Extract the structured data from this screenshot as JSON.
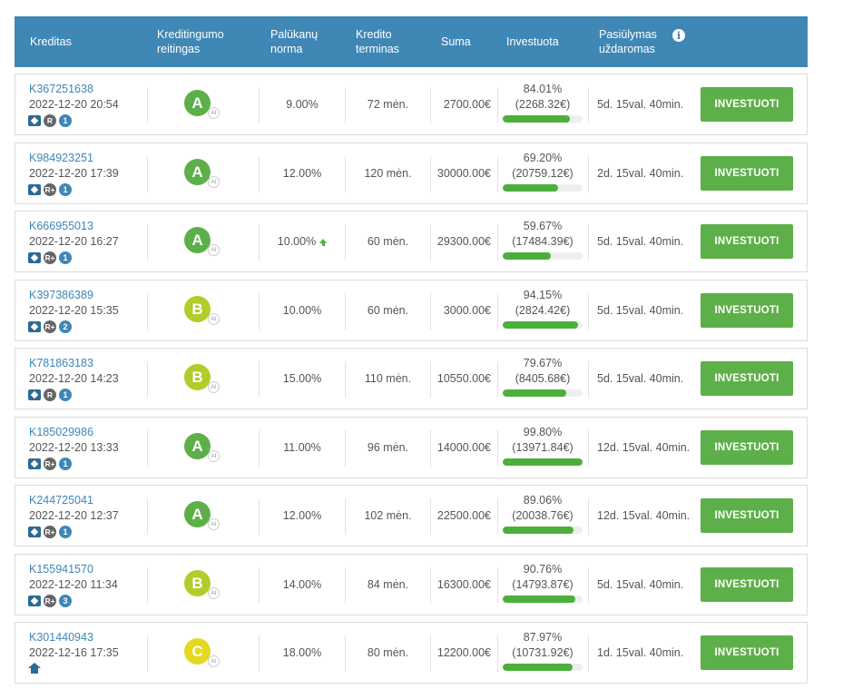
{
  "colors": {
    "header_bg": "#3f87b5",
    "grade_A": "#5db049",
    "grade_B": "#b3cc2a",
    "grade_C": "#e5d820",
    "button": "#5db049",
    "link": "#3d86b8"
  },
  "header": {
    "loan": "Kreditas",
    "rating_line1": "Kreditingumo",
    "rating_line2": "reitingas",
    "rate_line1": "Palūkanų",
    "rate_line2": "norma",
    "term_line1": "Kredito",
    "term_line2": "terminas",
    "amount": "Suma",
    "invested": "Investuota",
    "offer_line1": "Pasiūlymas",
    "offer_line2": "uždaromas",
    "info_icon": "info-icon"
  },
  "rows": [
    {
      "id": "K367251638",
      "date": "2022-12-20 20:54",
      "badge_type": "case",
      "risk": "R",
      "count": "1",
      "grade": "A",
      "ai": "AI",
      "rate": "9.00%",
      "rate_up": false,
      "term": "72 mėn.",
      "amount": "2700.00€",
      "pct": "84.01%",
      "invested": "(2268.32€)",
      "progress": 84.01,
      "closes": "5d. 15val. 40min.",
      "button": "INVESTUOTI"
    },
    {
      "id": "K984923251",
      "date": "2022-12-20 17:39",
      "badge_type": "case",
      "risk": "R+",
      "count": "1",
      "grade": "A",
      "ai": "AI",
      "rate": "12.00%",
      "rate_up": false,
      "term": "120 mėn.",
      "amount": "30000.00€",
      "pct": "69.20%",
      "invested": "(20759.12€)",
      "progress": 69.2,
      "closes": "2d. 15val. 40min.",
      "button": "INVESTUOTI"
    },
    {
      "id": "K666955013",
      "date": "2022-12-20 16:27",
      "badge_type": "case",
      "risk": "R+",
      "count": "1",
      "grade": "A",
      "ai": "AI",
      "rate": "10.00%",
      "rate_up": true,
      "term": "60 mėn.",
      "amount": "29300.00€",
      "pct": "59.67%",
      "invested": "(17484.39€)",
      "progress": 59.67,
      "closes": "5d. 15val. 40min.",
      "button": "INVESTUOTI"
    },
    {
      "id": "K397386389",
      "date": "2022-12-20 15:35",
      "badge_type": "case",
      "risk": "R+",
      "count": "2",
      "grade": "B",
      "ai": "AI",
      "rate": "10.00%",
      "rate_up": false,
      "term": "60 mėn.",
      "amount": "3000.00€",
      "pct": "94.15%",
      "invested": "(2824.42€)",
      "progress": 94.15,
      "closes": "5d. 15val. 40min.",
      "button": "INVESTUOTI"
    },
    {
      "id": "K781863183",
      "date": "2022-12-20 14:23",
      "badge_type": "case",
      "risk": "R",
      "count": "1",
      "grade": "B",
      "ai": "AI",
      "rate": "15.00%",
      "rate_up": false,
      "term": "110 mėn.",
      "amount": "10550.00€",
      "pct": "79.67%",
      "invested": "(8405.68€)",
      "progress": 79.67,
      "closes": "5d. 15val. 40min.",
      "button": "INVESTUOTI"
    },
    {
      "id": "K185029986",
      "date": "2022-12-20 13:33",
      "badge_type": "case",
      "risk": "R+",
      "count": "1",
      "grade": "A",
      "ai": "AI",
      "rate": "11.00%",
      "rate_up": false,
      "term": "96 mėn.",
      "amount": "14000.00€",
      "pct": "99.80%",
      "invested": "(13971.84€)",
      "progress": 99.8,
      "closes": "12d. 15val. 40min.",
      "button": "INVESTUOTI"
    },
    {
      "id": "K244725041",
      "date": "2022-12-20 12:37",
      "badge_type": "case",
      "risk": "R+",
      "count": "1",
      "grade": "A",
      "ai": "AI",
      "rate": "12.00%",
      "rate_up": false,
      "term": "102 mėn.",
      "amount": "22500.00€",
      "pct": "89.06%",
      "invested": "(20038.76€)",
      "progress": 89.06,
      "closes": "12d. 15val. 40min.",
      "button": "INVESTUOTI"
    },
    {
      "id": "K155941570",
      "date": "2022-12-20 11:34",
      "badge_type": "case",
      "risk": "R+",
      "count": "3",
      "grade": "B",
      "ai": "AI",
      "rate": "14.00%",
      "rate_up": false,
      "term": "84 mėn.",
      "amount": "16300.00€",
      "pct": "90.76%",
      "invested": "(14793.87€)",
      "progress": 90.76,
      "closes": "5d. 15val. 40min.",
      "button": "INVESTUOTI"
    },
    {
      "id": "K301440943",
      "date": "2022-12-16 17:35",
      "badge_type": "home",
      "risk": "",
      "count": "",
      "grade": "C",
      "ai": "AI",
      "rate": "18.00%",
      "rate_up": false,
      "term": "80 mėn.",
      "amount": "12200.00€",
      "pct": "87.97%",
      "invested": "(10731.92€)",
      "progress": 87.97,
      "closes": "1d. 15val. 40min.",
      "button": "INVESTUOTI"
    }
  ]
}
